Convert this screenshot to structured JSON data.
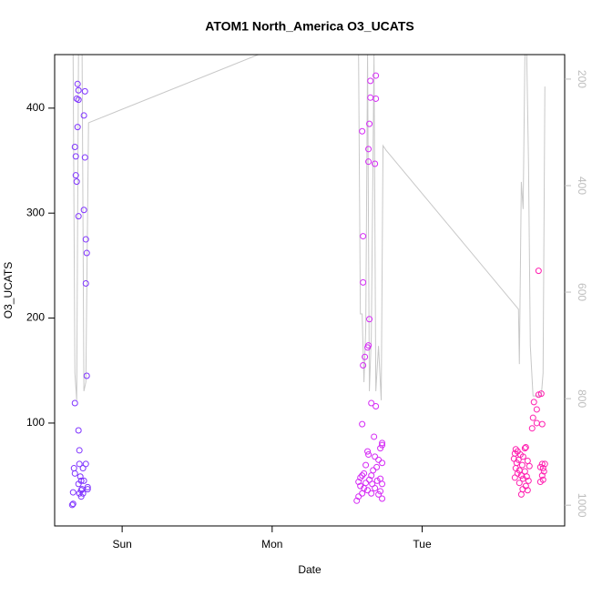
{
  "chart_data": {
    "type": "scatter",
    "title": "ATOM1 North_America O3_UCATS",
    "x_label": "Date",
    "y_label": "O3_UCATS",
    "xlim": [
      -0.45,
      2.95
    ],
    "xticks": [
      {
        "value": 0,
        "label": "Sun"
      },
      {
        "value": 1,
        "label": "Mon"
      },
      {
        "value": 2,
        "label": "Tue"
      }
    ],
    "ylim": [
      2,
      451
    ],
    "yticks": [
      100,
      200,
      300,
      400
    ],
    "y2lim": [
      1039,
      154
    ],
    "y2ticks": [
      200,
      400,
      600,
      800,
      1000
    ],
    "y2_color": "#bdbdbd",
    "groups": [
      {
        "color": "#7f33ff",
        "x": [
          -0.297,
          -0.291,
          -0.303,
          -0.291,
          -0.248,
          -0.255,
          -0.297,
          -0.315,
          -0.309,
          -0.248,
          -0.309,
          -0.303,
          -0.255,
          -0.291,
          -0.242,
          -0.236,
          -0.242,
          -0.236,
          -0.315,
          -0.291,
          -0.285,
          -0.242,
          -0.285,
          -0.321,
          -0.261,
          -0.315,
          -0.279,
          -0.273,
          -0.255,
          -0.291,
          -0.23,
          -0.267,
          -0.273,
          -0.23,
          -0.327,
          -0.285,
          -0.261,
          -0.273,
          -0.327,
          -0.333
        ],
        "values": [
          423,
          417,
          409,
          408,
          416,
          393,
          382,
          363,
          354,
          353,
          336,
          330,
          303,
          297,
          275,
          262,
          233,
          145,
          119,
          93,
          74,
          61,
          61,
          57,
          57,
          52,
          49,
          45,
          45,
          42,
          39,
          37,
          36,
          37,
          34,
          33,
          33,
          30,
          23,
          22
        ]
      },
      {
        "color": "#d52bf5",
        "x": [
          1.691,
          1.655,
          1.655,
          1.691,
          1.6,
          1.648,
          1.642,
          1.642,
          1.685,
          1.606,
          1.606,
          1.648,
          1.642,
          1.636,
          1.618,
          1.606,
          1.661,
          1.691,
          1.6,
          1.679,
          1.733,
          1.636,
          1.721,
          1.733,
          1.642,
          1.685,
          1.709,
          1.733,
          1.624,
          1.697,
          1.673,
          1.612,
          1.6,
          1.661,
          1.588,
          1.721,
          1.648,
          1.7,
          1.576,
          1.624,
          1.667,
          1.733,
          1.588,
          1.612,
          1.685,
          1.636,
          1.721,
          1.6,
          1.661,
          1.709,
          1.576,
          1.733,
          1.564
        ],
        "values": [
          431,
          426,
          410,
          409,
          378,
          385,
          361,
          349,
          347,
          278,
          234,
          199,
          174,
          172,
          163,
          155,
          119,
          116,
          99,
          87,
          81,
          73,
          76,
          79,
          70,
          68,
          65,
          62,
          60,
          58,
          55,
          52,
          50,
          50,
          48,
          47,
          46,
          45,
          44,
          43,
          42,
          42,
          40,
          38,
          38,
          36,
          35,
          33,
          33,
          32,
          30,
          28,
          26
        ]
      },
      {
        "color": "#ff1fb0",
        "x": [
          2.776,
          2.794,
          2.776,
          2.745,
          2.764,
          2.739,
          2.764,
          2.8,
          2.733,
          2.624,
          2.636,
          2.685,
          2.691,
          2.618,
          2.655,
          2.673,
          2.612,
          2.642,
          2.703,
          2.8,
          2.818,
          2.63,
          2.667,
          2.715,
          2.788,
          2.806,
          2.624,
          2.648,
          2.685,
          2.812,
          2.636,
          2.661,
          2.697,
          2.8,
          2.618,
          2.673,
          2.709,
          2.788,
          2.806,
          2.648,
          2.691,
          2.67,
          2.703,
          2.661
        ],
        "values": [
          245,
          128,
          127,
          120,
          113,
          105,
          100,
          99,
          95,
          75,
          73,
          76,
          77,
          71,
          70,
          68,
          66,
          65,
          64,
          61,
          61,
          62,
          60,
          59,
          58,
          57,
          57,
          55,
          54,
          54,
          52,
          50,
          49,
          50,
          48,
          47,
          45,
          44,
          46,
          43,
          40,
          37,
          36,
          32
        ]
      }
    ],
    "line": {
      "color": "#c8c8c8",
      "axis": "y2",
      "x": [
        -0.327,
        -0.315,
        -0.303,
        -0.291,
        -0.267,
        -0.255,
        -0.242,
        -0.224,
        0.988,
        1.3,
        1.576,
        1.588,
        1.6,
        1.612,
        1.624,
        1.636,
        1.648,
        1.661,
        1.679,
        1.691,
        1.709,
        1.727,
        1.739,
        1.758,
        2.642,
        2.648,
        2.661,
        2.673,
        2.685,
        2.697,
        2.709,
        2.721,
        2.739,
        2.794,
        2.806,
        2.818
      ],
      "values": [
        154,
        752,
        803,
        154,
        154,
        786,
        769,
        282,
        145,
        null,
        154,
        641,
        641,
        769,
        667,
        154,
        786,
        684,
        154,
        786,
        701,
        803,
        325,
        333,
        632,
        735,
        393,
        444,
        154,
        154,
        359,
        701,
        795,
        795,
        752,
        214
      ]
    }
  }
}
